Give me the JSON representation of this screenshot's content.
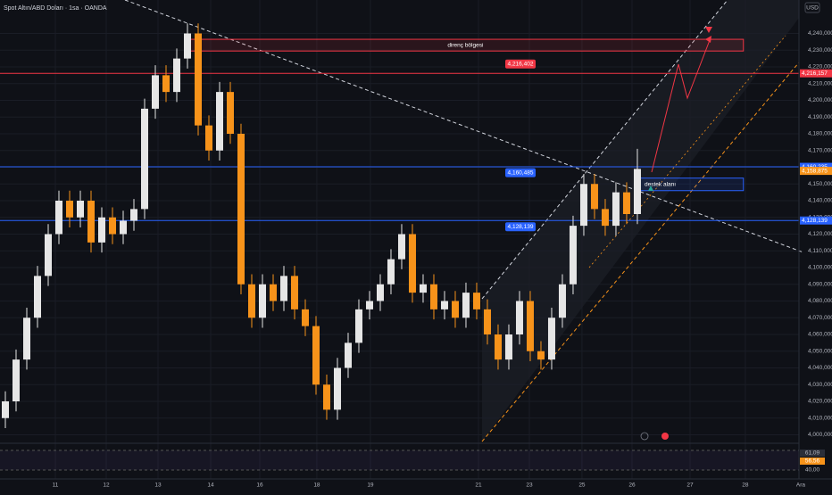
{
  "chart_data": {
    "type": "candlestick",
    "title": "Spot Altın/ABD Doları · 1sa · OANDA",
    "currency": "USD",
    "up_color": "#e6e6e6",
    "down_color": "#f7931a",
    "grid": true,
    "x": [
      0.5,
      1.5,
      2.5,
      3.5,
      4.5,
      5.5,
      6.5,
      7.5,
      8.5,
      9.5,
      10.5,
      11.5,
      12.5,
      13.5,
      14.5,
      15.5,
      16.5,
      17.5,
      18.5,
      19.5,
      20.5,
      21.5,
      22.5,
      23.5,
      24.5,
      25.5,
      26.5,
      27.5,
      28.5,
      29.5,
      30.5,
      31.5,
      32.5,
      33.5,
      34.5,
      35.5,
      36.5,
      37.5,
      38.5,
      39.5,
      40.5,
      41.5,
      42.5,
      43.5,
      44.5,
      45.5,
      46.5,
      47.5,
      48.5,
      49.5,
      50.5,
      51.5,
      52.5,
      53.5,
      54.5,
      55.5,
      56.5,
      57.5,
      58.5,
      59.5
    ],
    "open": [
      4010,
      4020,
      4045,
      4070,
      4095,
      4120,
      4140,
      4130,
      4140,
      4115,
      4130,
      4120,
      4128,
      4135,
      4195,
      4215,
      4205,
      4225,
      4240,
      4185,
      4170,
      4205,
      4180,
      4090,
      4070,
      4090,
      4080,
      4095,
      4075,
      4065,
      4030,
      4015,
      4040,
      4055,
      4075,
      4080,
      4090,
      4105,
      4120,
      4085,
      4090,
      4075,
      4080,
      4070,
      4085,
      4075,
      4060,
      4045,
      4060,
      4080,
      4050,
      4045,
      4070,
      4090,
      4125,
      4150,
      4135,
      4125,
      4145,
      4132
    ],
    "high": [
      4026,
      4051,
      4076,
      4101,
      4126,
      4146,
      4146,
      4146,
      4146,
      4136,
      4136,
      4134,
      4141,
      4201,
      4221,
      4221,
      4231,
      4246,
      4246,
      4191,
      4211,
      4211,
      4186,
      4096,
      4096,
      4096,
      4101,
      4101,
      4081,
      4071,
      4036,
      4046,
      4061,
      4081,
      4086,
      4096,
      4111,
      4126,
      4126,
      4096,
      4096,
      4086,
      4086,
      4091,
      4091,
      4081,
      4066,
      4066,
      4086,
      4086,
      4056,
      4076,
      4096,
      4131,
      4156,
      4156,
      4141,
      4151,
      4151,
      4171
    ],
    "low": [
      4004,
      4014,
      4039,
      4064,
      4089,
      4114,
      4124,
      4124,
      4109,
      4109,
      4114,
      4114,
      4122,
      4129,
      4189,
      4199,
      4199,
      4219,
      4179,
      4164,
      4164,
      4174,
      4084,
      4064,
      4064,
      4074,
      4074,
      4069,
      4059,
      4024,
      4009,
      4009,
      4034,
      4049,
      4069,
      4074,
      4084,
      4099,
      4079,
      4079,
      4069,
      4069,
      4064,
      4064,
      4069,
      4054,
      4039,
      4039,
      4054,
      4044,
      4039,
      4039,
      4064,
      4084,
      4119,
      4129,
      4119,
      4119,
      4126,
      4126
    ],
    "close": [
      4020,
      4045,
      4070,
      4095,
      4120,
      4140,
      4130,
      4140,
      4115,
      4130,
      4120,
      4128,
      4135,
      4195,
      4215,
      4205,
      4225,
      4240,
      4185,
      4170,
      4205,
      4180,
      4090,
      4070,
      4090,
      4080,
      4095,
      4075,
      4065,
      4030,
      4015,
      4040,
      4055,
      4075,
      4080,
      4090,
      4105,
      4120,
      4085,
      4090,
      4075,
      4080,
      4070,
      4085,
      4075,
      4060,
      4045,
      4060,
      4080,
      4050,
      4045,
      4070,
      4090,
      4125,
      4150,
      4135,
      4125,
      4145,
      4132,
      4159
    ],
    "xlim": [
      0,
      77.67
    ],
    "ylim": [
      3996,
      4260
    ],
    "xticks": [
      {
        "value": 5.17,
        "label": "11"
      },
      {
        "value": 9.92,
        "label": "12"
      },
      {
        "value": 14.75,
        "label": "13"
      },
      {
        "value": 19.67,
        "label": "14"
      },
      {
        "value": 24.25,
        "label": "16"
      },
      {
        "value": 29.58,
        "label": "18"
      },
      {
        "value": 34.58,
        "label": "19"
      },
      {
        "value": 44.67,
        "label": "21"
      },
      {
        "value": 49.42,
        "label": "23"
      },
      {
        "value": 54.33,
        "label": "25"
      },
      {
        "value": 59,
        "label": "26"
      },
      {
        "value": 64.42,
        "label": "27"
      },
      {
        "value": 69.58,
        "label": "28"
      },
      {
        "value": 74.75,
        "label": "Ara"
      }
    ],
    "yticks": [
      {
        "value": 4000,
        "label": "4,000,000"
      },
      {
        "value": 4010,
        "label": "4,010,000"
      },
      {
        "value": 4020,
        "label": "4,020,000"
      },
      {
        "value": 4030,
        "label": "4,030,000"
      },
      {
        "value": 4040,
        "label": "4,040,000"
      },
      {
        "value": 4050,
        "label": "4,050,000"
      },
      {
        "value": 4060,
        "label": "4,060,000"
      },
      {
        "value": 4070,
        "label": "4,070,000"
      },
      {
        "value": 4080,
        "label": "4,080,000"
      },
      {
        "value": 4090,
        "label": "4,090,000"
      },
      {
        "value": 4100,
        "label": "4,100,000"
      },
      {
        "value": 4110,
        "label": "4,110,000"
      },
      {
        "value": 4120,
        "label": "4,120,000"
      },
      {
        "value": 4130,
        "label": "4,130,000"
      },
      {
        "value": 4140,
        "label": "4,140,000"
      },
      {
        "value": 4150,
        "label": "4,150,000"
      },
      {
        "value": 4160,
        "label": "4,160,000"
      },
      {
        "value": 4170,
        "label": "4,170,000"
      },
      {
        "value": 4180,
        "label": "4,180,000"
      },
      {
        "value": 4190,
        "label": "4,190,000"
      },
      {
        "value": 4200,
        "label": "4,200,000"
      },
      {
        "value": 4210,
        "label": "4,210,000"
      },
      {
        "value": 4220,
        "label": "4,220,000"
      },
      {
        "value": 4230,
        "label": "4,230,000"
      },
      {
        "value": 4240,
        "label": "4,240,000"
      }
    ],
    "hlines": [
      {
        "value": 4216.157,
        "label": "4,216,157",
        "color": "#f23645"
      },
      {
        "value": 4160.235,
        "label": "4,160,235",
        "color": "#2962ff"
      },
      {
        "value": 4128.139,
        "label": "4,128,139",
        "color": "#2962ff"
      }
    ],
    "last_price": {
      "value": 4158.875,
      "label": "4,158,875",
      "color": "#f7931a"
    },
    "tags": [
      {
        "value": 4216.402,
        "label": "4,216,402",
        "color": "#f23645"
      },
      {
        "value": 4160.485,
        "label": "4,160,485",
        "color": "#2962ff"
      },
      {
        "value": 4128.139,
        "label": "4,128,139",
        "color": "#2962ff"
      }
    ],
    "zones": [
      {
        "label": "direnç bölgesi",
        "from": 4229.5,
        "to": 4236.5,
        "x": [
          17.5,
          69.4
        ],
        "color": "#f23645"
      },
      {
        "label": "destek alanı",
        "from": 4146,
        "to": 4153.5,
        "x": [
          59.67,
          69.4
        ],
        "color": "#2962ff"
      }
    ],
    "rsi": {
      "value_label": "61,09",
      "ma_label": "56,56",
      "level_label": "40,00"
    }
  }
}
